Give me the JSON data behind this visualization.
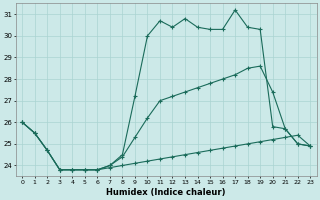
{
  "xlabel": "Humidex (Indice chaleur)",
  "background_color": "#cce9e8",
  "grid_color": "#aad4d2",
  "line_color": "#1a6b5a",
  "x_hours": [
    0,
    1,
    2,
    3,
    4,
    5,
    6,
    7,
    8,
    9,
    10,
    11,
    12,
    13,
    14,
    15,
    16,
    17,
    18,
    19,
    20,
    21,
    22,
    23
  ],
  "y_max": [
    26,
    25.5,
    24.7,
    23.8,
    23.8,
    23.8,
    23.8,
    24.0,
    24.5,
    27.2,
    30.0,
    30.7,
    30.4,
    30.8,
    30.4,
    30.3,
    30.3,
    31.2,
    30.4,
    30.3,
    25.8,
    25.7,
    25.0,
    24.9
  ],
  "y_avg": [
    26,
    25.5,
    24.7,
    23.8,
    23.8,
    23.8,
    23.8,
    24.0,
    24.4,
    25.3,
    26.2,
    27.0,
    27.2,
    27.4,
    27.6,
    27.8,
    28.0,
    28.2,
    28.5,
    28.6,
    27.4,
    25.7,
    25.0,
    24.9
  ],
  "y_min": [
    26,
    25.5,
    24.7,
    23.8,
    23.8,
    23.8,
    23.8,
    23.9,
    24.0,
    24.1,
    24.2,
    24.3,
    24.4,
    24.5,
    24.6,
    24.7,
    24.8,
    24.9,
    25.0,
    25.1,
    25.2,
    25.3,
    25.4,
    24.9
  ],
  "ylim": [
    23.5,
    31.5
  ],
  "yticks": [
    24,
    25,
    26,
    27,
    28,
    29,
    30,
    31
  ],
  "xlim": [
    -0.5,
    23.5
  ]
}
